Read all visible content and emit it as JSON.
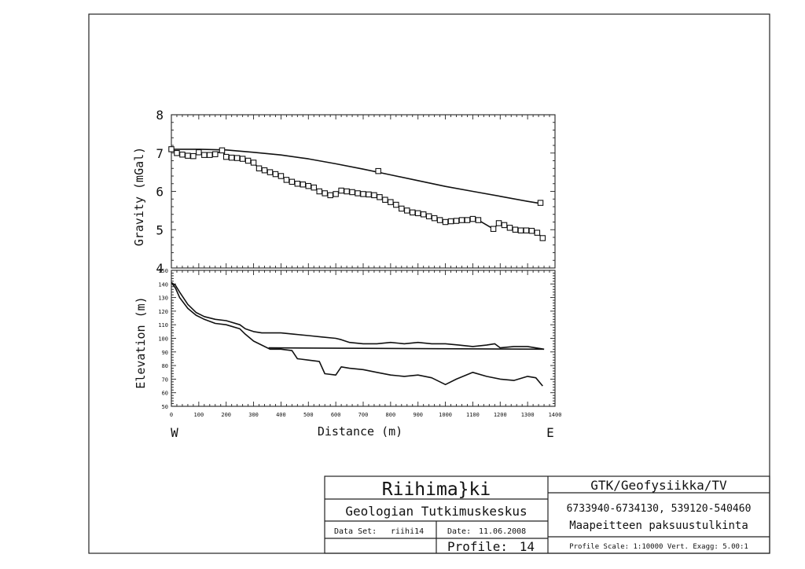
{
  "chart_data": [
    {
      "type": "scatter",
      "xlabel": "",
      "ylabel": "Gravity (mGal)",
      "xlim": [
        0,
        1400
      ],
      "ylim": [
        4,
        8
      ],
      "yticks": [
        "4",
        "5",
        "6",
        "7",
        "8"
      ],
      "series": [
        {
          "kind": "line",
          "x": [
            0,
            100,
            200,
            300,
            400,
            500,
            600,
            700,
            800,
            900,
            1000,
            1100,
            1200,
            1300,
            1350
          ],
          "values": [
            7.1,
            7.1,
            7.08,
            7.02,
            6.95,
            6.85,
            6.72,
            6.58,
            6.43,
            6.28,
            6.13,
            6.0,
            5.87,
            5.74,
            5.68
          ]
        },
        {
          "kind": "markers",
          "x": [
            755,
            1347
          ],
          "values": [
            6.53,
            5.7
          ]
        },
        {
          "kind": "line+markers",
          "x": [
            0,
            20,
            40,
            60,
            80,
            100,
            120,
            140,
            160,
            185,
            200,
            220,
            240,
            260,
            280,
            300,
            320,
            340,
            360,
            380,
            400,
            420,
            440,
            460,
            480,
            500,
            520,
            540,
            560,
            580,
            600,
            620,
            640,
            660,
            680,
            700,
            720,
            740,
            760,
            780,
            800,
            820,
            840,
            860,
            880,
            900,
            920,
            940,
            960,
            980,
            1000,
            1020,
            1040,
            1060,
            1080,
            1100,
            1120,
            1175,
            1195,
            1215,
            1235,
            1255,
            1275,
            1295,
            1315,
            1335,
            1355
          ],
          "values": [
            7.1,
            7.0,
            6.96,
            6.93,
            6.92,
            7.02,
            6.95,
            6.95,
            6.97,
            7.07,
            6.9,
            6.88,
            6.87,
            6.85,
            6.8,
            6.75,
            6.6,
            6.55,
            6.5,
            6.45,
            6.4,
            6.3,
            6.25,
            6.2,
            6.18,
            6.14,
            6.1,
            6.0,
            5.95,
            5.9,
            5.93,
            6.02,
            6.0,
            5.98,
            5.95,
            5.93,
            5.92,
            5.9,
            5.85,
            5.78,
            5.72,
            5.65,
            5.55,
            5.5,
            5.45,
            5.43,
            5.4,
            5.35,
            5.3,
            5.25,
            5.2,
            5.22,
            5.23,
            5.25,
            5.25,
            5.28,
            5.25,
            5.02,
            5.17,
            5.12,
            5.05,
            5.0,
            4.98,
            4.98,
            4.97,
            4.92,
            4.78
          ]
        }
      ]
    },
    {
      "type": "line",
      "xlabel": "Distance (m)",
      "ylabel": "Elevation (m)",
      "xlim": [
        0,
        1400
      ],
      "ylim": [
        50,
        150
      ],
      "xticks": [
        "0",
        "100",
        "200",
        "300",
        "400",
        "500",
        "600",
        "700",
        "800",
        "900",
        "1000",
        "1100",
        "1200",
        "1300",
        "1400"
      ],
      "yticks": [
        "50",
        "60",
        "70",
        "80",
        "90",
        "100",
        "110",
        "120",
        "130",
        "140",
        "150"
      ],
      "axis_end_labels": {
        "left": "W",
        "right": "E"
      },
      "series": [
        {
          "x": [
            0,
            15,
            30,
            60,
            90,
            120,
            160,
            200,
            250,
            270,
            300,
            330,
            360,
            400,
            450,
            500,
            550,
            600,
            620,
            650,
            700,
            750,
            800,
            850,
            900,
            950,
            1000,
            1050,
            1100,
            1150,
            1180,
            1200,
            1250,
            1300,
            1360
          ],
          "values": [
            141,
            139,
            134,
            125,
            119,
            116,
            114,
            113,
            110,
            107,
            105,
            104,
            104,
            104,
            103,
            102,
            101,
            100,
            99,
            97,
            96,
            96,
            97,
            96,
            97,
            96,
            96,
            95,
            94,
            95,
            96,
            93,
            94,
            94,
            92
          ]
        },
        {
          "x": [
            0,
            15,
            30,
            60,
            90,
            120,
            160,
            200,
            250,
            270,
            300,
            330,
            360,
            400,
            440,
            460,
            500,
            540,
            560,
            600,
            620,
            650,
            700,
            750,
            800,
            850,
            900,
            950,
            1000,
            1040,
            1100,
            1150,
            1200,
            1250,
            1300,
            1330,
            1355
          ],
          "values": [
            141,
            137,
            130,
            122,
            117,
            114,
            111,
            110,
            107,
            103,
            98,
            95,
            92,
            92,
            91,
            85,
            84,
            83,
            74,
            73,
            79,
            78,
            77,
            75,
            73,
            72,
            73,
            71,
            66,
            70,
            75,
            72,
            70,
            69,
            72,
            71,
            65
          ]
        },
        {
          "x": [
            355,
            1360
          ],
          "values": [
            93,
            92
          ]
        }
      ]
    }
  ],
  "title_block": {
    "title": "Riihima}ki",
    "organization": "Geologian Tutkimuskeskus",
    "dataset_label": "Data Set:",
    "dataset_value": "riihi14",
    "date_label": "Date:",
    "date_value": "11.06.2008",
    "profile_label": "Profile:",
    "profile_value": "14",
    "department": "GTK/Geofysiikka/TV",
    "coordinates": "6733940-6734130, 539120-540460",
    "subject": "Maapeitteen paksuustulkinta",
    "scale_text": "Profile Scale: 1:10000 Vert. Exagg: 5.00:1"
  }
}
